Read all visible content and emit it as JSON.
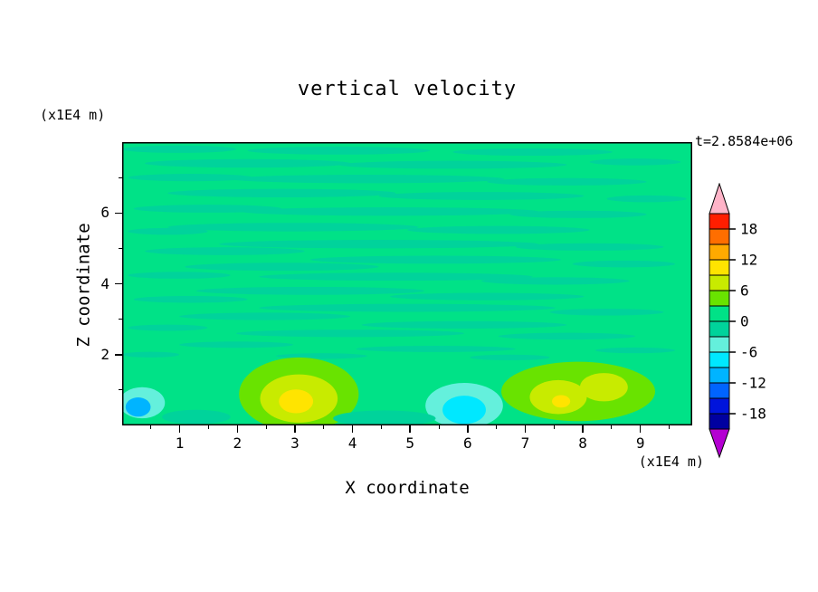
{
  "chart_data": {
    "type": "contour",
    "title": "vertical velocity",
    "time_label": "t=2.8584e+06",
    "xlabel": "X coordinate",
    "ylabel": "Z coordinate",
    "x_unit": "(x1E4 m)",
    "y_unit": "(x1E4 m)",
    "xlim": [
      0,
      9.9
    ],
    "ylim": [
      0,
      8
    ],
    "x_ticks": [
      1,
      2,
      3,
      4,
      5,
      6,
      7,
      8,
      9
    ],
    "y_ticks": [
      2,
      4,
      6
    ],
    "y_minor_ticks": [
      1,
      3,
      5,
      7
    ],
    "contour_interval": 3,
    "colorbar": {
      "labels": [
        18,
        12,
        6,
        0,
        -6,
        -12,
        -18
      ],
      "over_color": "#ffb4c8",
      "under_color": "#b400d2",
      "levels": [
        {
          "range": [
            18,
            21
          ],
          "color": "#ff1e00"
        },
        {
          "range": [
            15,
            18
          ],
          "color": "#ff6e00"
        },
        {
          "range": [
            12,
            15
          ],
          "color": "#ffaa00"
        },
        {
          "range": [
            9,
            12
          ],
          "color": "#ffe400"
        },
        {
          "range": [
            6,
            9
          ],
          "color": "#c8eb00"
        },
        {
          "range": [
            3,
            6
          ],
          "color": "#69e300"
        },
        {
          "range": [
            0,
            3
          ],
          "color": "#00e287"
        },
        {
          "range": [
            -3,
            0
          ],
          "color": "#00d39b"
        },
        {
          "range": [
            -6,
            -3
          ],
          "color": "#64f0dc"
        },
        {
          "range": [
            -9,
            -6
          ],
          "color": "#00e8ff"
        },
        {
          "range": [
            -12,
            -9
          ],
          "color": "#00b4ff"
        },
        {
          "range": [
            -15,
            -12
          ],
          "color": "#0064ff"
        },
        {
          "range": [
            -18,
            -15
          ],
          "color": "#0014dc"
        },
        {
          "range": [
            -21,
            -18
          ],
          "color": "#0000a0"
        }
      ]
    },
    "field": {
      "base_color": "#00e287",
      "base_level": [
        0,
        3
      ],
      "streak_color": "#00d39b",
      "streak_level": [
        -3,
        0
      ],
      "streaks": [
        [
          0.1,
          0.025,
          0.1,
          0.013
        ],
        [
          0.38,
          0.03,
          0.16,
          0.014
        ],
        [
          0.72,
          0.035,
          0.14,
          0.013
        ],
        [
          0.22,
          0.075,
          0.18,
          0.015
        ],
        [
          0.58,
          0.08,
          0.2,
          0.014
        ],
        [
          0.9,
          0.07,
          0.08,
          0.012
        ],
        [
          0.12,
          0.125,
          0.11,
          0.013
        ],
        [
          0.43,
          0.13,
          0.24,
          0.015
        ],
        [
          0.78,
          0.14,
          0.14,
          0.013
        ],
        [
          0.28,
          0.18,
          0.2,
          0.015
        ],
        [
          0.63,
          0.19,
          0.18,
          0.014
        ],
        [
          0.92,
          0.2,
          0.07,
          0.012
        ],
        [
          0.15,
          0.235,
          0.13,
          0.014
        ],
        [
          0.47,
          0.245,
          0.26,
          0.015
        ],
        [
          0.8,
          0.255,
          0.12,
          0.013
        ],
        [
          0.3,
          0.3,
          0.22,
          0.015
        ],
        [
          0.66,
          0.31,
          0.16,
          0.014
        ],
        [
          0.08,
          0.315,
          0.07,
          0.012
        ],
        [
          0.45,
          0.36,
          0.28,
          0.015
        ],
        [
          0.82,
          0.37,
          0.13,
          0.013
        ],
        [
          0.18,
          0.385,
          0.14,
          0.014
        ],
        [
          0.55,
          0.415,
          0.22,
          0.014
        ],
        [
          0.88,
          0.43,
          0.09,
          0.012
        ],
        [
          0.28,
          0.44,
          0.17,
          0.014
        ],
        [
          0.1,
          0.47,
          0.09,
          0.012
        ],
        [
          0.48,
          0.475,
          0.24,
          0.014
        ],
        [
          0.76,
          0.49,
          0.13,
          0.013
        ],
        [
          0.33,
          0.525,
          0.2,
          0.014
        ],
        [
          0.64,
          0.545,
          0.17,
          0.013
        ],
        [
          0.12,
          0.555,
          0.1,
          0.012
        ],
        [
          0.5,
          0.585,
          0.26,
          0.014
        ],
        [
          0.85,
          0.6,
          0.1,
          0.012
        ],
        [
          0.25,
          0.615,
          0.15,
          0.013
        ],
        [
          0.6,
          0.645,
          0.18,
          0.013
        ],
        [
          0.08,
          0.655,
          0.07,
          0.011
        ],
        [
          0.4,
          0.675,
          0.2,
          0.013
        ],
        [
          0.78,
          0.685,
          0.12,
          0.012
        ],
        [
          0.2,
          0.715,
          0.1,
          0.011
        ],
        [
          0.55,
          0.73,
          0.14,
          0.011
        ],
        [
          0.9,
          0.735,
          0.07,
          0.01
        ],
        [
          0.05,
          0.75,
          0.05,
          0.01
        ],
        [
          0.35,
          0.755,
          0.08,
          0.01
        ],
        [
          0.68,
          0.76,
          0.07,
          0.01
        ]
      ],
      "features": [
        {
          "cx": 0.31,
          "cy": 0.89,
          "rx": 0.105,
          "ry": 0.13,
          "color": "#69e300"
        },
        {
          "cx": 0.31,
          "cy": 0.905,
          "rx": 0.068,
          "ry": 0.085,
          "color": "#c8eb00"
        },
        {
          "cx": 0.305,
          "cy": 0.915,
          "rx": 0.03,
          "ry": 0.042,
          "color": "#ffe400"
        },
        {
          "cx": 0.8,
          "cy": 0.88,
          "rx": 0.135,
          "ry": 0.105,
          "color": "#69e300"
        },
        {
          "cx": 0.765,
          "cy": 0.9,
          "rx": 0.05,
          "ry": 0.06,
          "color": "#c8eb00"
        },
        {
          "cx": 0.845,
          "cy": 0.865,
          "rx": 0.042,
          "ry": 0.05,
          "color": "#c8eb00"
        },
        {
          "cx": 0.77,
          "cy": 0.915,
          "rx": 0.016,
          "ry": 0.022,
          "color": "#ffe400"
        },
        {
          "cx": 0.6,
          "cy": 0.93,
          "rx": 0.068,
          "ry": 0.08,
          "color": "#64f0dc"
        },
        {
          "cx": 0.6,
          "cy": 0.945,
          "rx": 0.038,
          "ry": 0.05,
          "color": "#00e8ff"
        },
        {
          "cx": 0.035,
          "cy": 0.92,
          "rx": 0.04,
          "ry": 0.055,
          "color": "#64f0dc"
        },
        {
          "cx": 0.028,
          "cy": 0.935,
          "rx": 0.022,
          "ry": 0.034,
          "color": "#00b4ff"
        },
        {
          "cx": 0.46,
          "cy": 0.975,
          "rx": 0.09,
          "ry": 0.028,
          "color": "#00d39b"
        },
        {
          "cx": 0.13,
          "cy": 0.97,
          "rx": 0.06,
          "ry": 0.025,
          "color": "#00d39b"
        }
      ]
    }
  }
}
